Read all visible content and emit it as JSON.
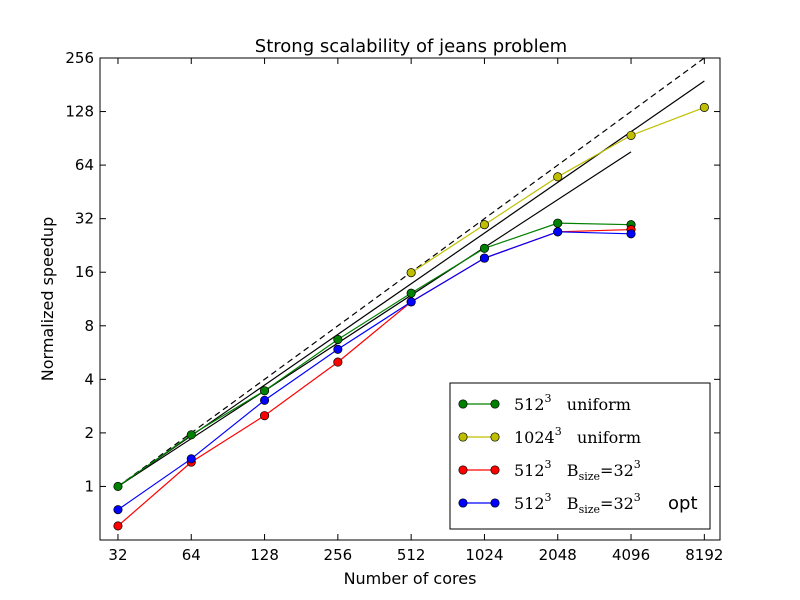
{
  "chart_data": {
    "type": "line",
    "title": "Strong scalability of jeans problem",
    "xlabel": "Number of cores",
    "ylabel": "Normalized speedup",
    "x_scale": "log2",
    "y_scale": "log2",
    "xlim": [
      27,
      9500
    ],
    "ylim": [
      0.5,
      256
    ],
    "x_ticks": [
      32,
      64,
      128,
      256,
      512,
      1024,
      2048,
      4096,
      8192
    ],
    "x_tick_labels": [
      "32",
      "64",
      "128",
      "256",
      "512",
      "1024",
      "2048",
      "4096",
      "8192"
    ],
    "y_ticks": [
      1,
      2,
      4,
      8,
      16,
      32,
      64,
      128,
      256
    ],
    "y_tick_labels": [
      "1",
      "2",
      "4",
      "8",
      "16",
      "32",
      "64",
      "128",
      "256"
    ],
    "grid": false,
    "legend_position": "bottom-right",
    "series": [
      {
        "legend": {
          "base": "512",
          "sup": "3",
          "text": "uniform",
          "sub": "",
          "subexp": "",
          "subsup": "",
          "extra": ""
        },
        "color": "#008000",
        "x": [
          32,
          64,
          128,
          256,
          512,
          1024,
          2048,
          4096
        ],
        "y": [
          1.0,
          1.95,
          3.45,
          6.7,
          12.2,
          21.8,
          30.2,
          29.6
        ]
      },
      {
        "legend": {
          "base": "1024",
          "sup": "3",
          "text": "uniform",
          "sub": "",
          "subexp": "",
          "subsup": "",
          "extra": ""
        },
        "color": "#bfbf00",
        "x": [
          512,
          1024,
          2048,
          4096,
          8192
        ],
        "y": [
          15.9,
          29.6,
          55.0,
          94.0,
          135.0
        ]
      },
      {
        "legend": {
          "base": "512",
          "sup": "3",
          "text": "B",
          "sub": "size",
          "subexp": "=32",
          "subsup": "3",
          "extra": ""
        },
        "color": "#ff0000",
        "x": [
          32,
          64,
          128,
          256,
          512,
          1024,
          2048,
          4096
        ],
        "y": [
          0.6,
          1.37,
          2.5,
          5.0,
          10.9,
          19.2,
          27.0,
          27.8
        ]
      },
      {
        "legend": {
          "base": "512",
          "sup": "3",
          "text": "B",
          "sub": "size",
          "subexp": "=32",
          "subsup": "3",
          "extra": "opt"
        },
        "color": "#0000ff",
        "x": [
          32,
          64,
          128,
          256,
          512,
          1024,
          2048,
          4096
        ],
        "y": [
          0.74,
          1.43,
          3.05,
          5.9,
          10.9,
          19.2,
          27.0,
          26.3
        ]
      }
    ],
    "reference_lines": [
      {
        "style": "dashed",
        "color": "#000000",
        "x": [
          32,
          8192
        ],
        "y": [
          1.0,
          256.0
        ]
      },
      {
        "style": "solid",
        "color": "#000000",
        "x": [
          32,
          8192
        ],
        "y": [
          1.0,
          190.0
        ]
      },
      {
        "style": "solid",
        "color": "#000000",
        "x": [
          32,
          4096
        ],
        "y": [
          1.0,
          76.0
        ]
      }
    ]
  }
}
